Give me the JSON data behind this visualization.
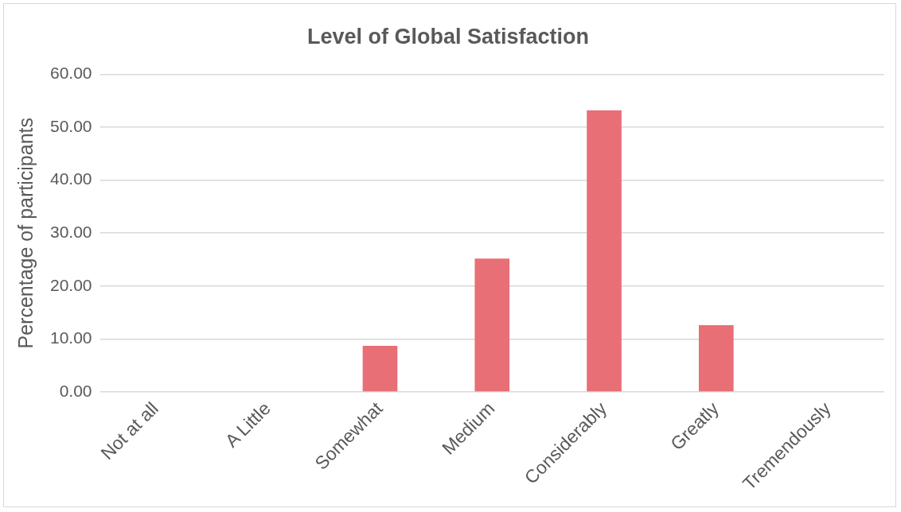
{
  "chart_data": {
    "type": "bar",
    "title": "Level of Global Satisfaction",
    "ylabel": "Percentage of participants",
    "categories": [
      "Not at all",
      "A Little",
      "Somewhat",
      "Medium",
      "Considerably",
      "Greatly",
      "Tremendously"
    ],
    "values": [
      0,
      0,
      8.7,
      25.2,
      53.2,
      12.6,
      0
    ],
    "color": "#e86f75",
    "ylim": [
      0,
      60
    ],
    "yticks": [
      {
        "value": 0,
        "label": "0.00"
      },
      {
        "value": 10,
        "label": "10.00"
      },
      {
        "value": 20,
        "label": "20.00"
      },
      {
        "value": 30,
        "label": "30.00"
      },
      {
        "value": 40,
        "label": "40.00"
      },
      {
        "value": 50,
        "label": "50.00"
      },
      {
        "value": 60,
        "label": "60.00"
      }
    ],
    "grid": "y"
  }
}
